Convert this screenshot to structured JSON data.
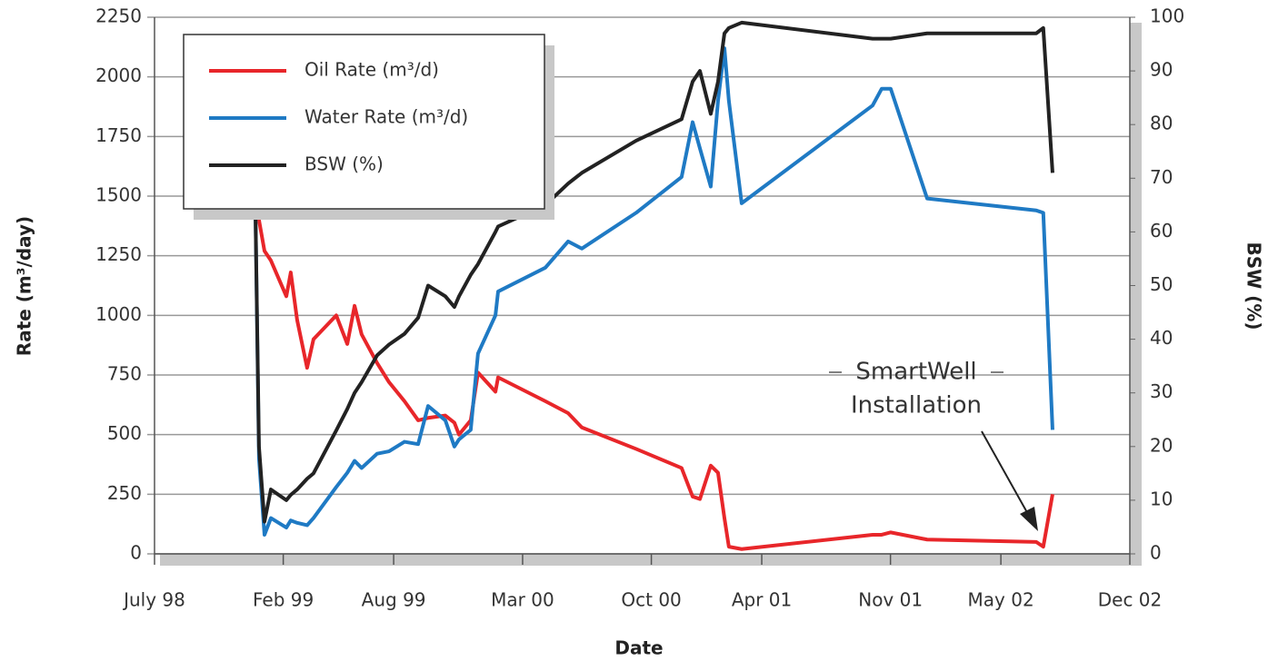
{
  "chart_data": {
    "type": "line",
    "x_label": "Date",
    "y_label": "Rate (m³/day)",
    "y2_label": "BSW (%)",
    "x": [
      1998.957,
      1998.973,
      1998.998,
      1999.027,
      1999.097,
      1999.117,
      1999.146,
      1999.191,
      1999.22,
      1999.323,
      1999.373,
      1999.406,
      1999.438,
      1999.508,
      1999.562,
      1999.632,
      1999.694,
      1999.739,
      1999.817,
      1999.858,
      1999.879,
      1999.932,
      1999.965,
      2000.044,
      2000.056,
      2000.27,
      2000.373,
      2000.435,
      2000.681,
      2000.887,
      2000.937,
      2000.97,
      2001.019,
      2001.052,
      2001.081,
      2001.101,
      2001.159,
      2001.752,
      2001.793,
      2001.834,
      2001.999,
      2002.493,
      2002.525,
      2002.567
    ],
    "series": [
      {
        "name": "Oil Rate (m³/d)",
        "color": "#e8262a",
        "values": [
          1450,
          1400,
          1270,
          1230,
          1080,
          1180,
          980,
          780,
          900,
          1000,
          880,
          1040,
          920,
          800,
          720,
          640,
          560,
          570,
          580,
          550,
          500,
          560,
          760,
          680,
          740,
          640,
          590,
          530,
          440,
          360,
          240,
          230,
          370,
          340,
          150,
          30,
          20,
          80,
          80,
          90,
          60,
          50,
          30,
          250
        ]
      },
      {
        "name": "Water Rate (m³/d)",
        "color": "#1f7ac4",
        "values": [
          1450,
          400,
          80,
          150,
          110,
          140,
          130,
          120,
          150,
          280,
          340,
          390,
          360,
          420,
          430,
          470,
          460,
          620,
          560,
          450,
          480,
          520,
          840,
          1000,
          1100,
          1200,
          1310,
          1280,
          1430,
          1580,
          1810,
          1700,
          1540,
          1900,
          2120,
          1900,
          1470,
          1880,
          1950,
          1950,
          1490,
          1440,
          1430,
          520
        ]
      },
      {
        "name": "BSW (%)",
        "color": "#222222",
        "axis": "y2",
        "values": [
          64,
          20,
          6,
          12,
          10,
          11,
          12,
          14,
          15,
          23,
          27,
          30,
          32,
          37,
          39,
          41,
          44,
          50,
          48,
          46,
          48,
          52,
          54,
          60,
          61,
          65,
          69,
          71,
          77,
          81,
          88,
          90,
          82,
          88,
          97,
          98,
          99,
          96,
          96,
          96,
          97,
          97,
          98,
          71
        ]
      }
    ],
    "xlim": [
      1998.5,
      2002.917
    ],
    "xticks": [
      {
        "value": 1998.5,
        "label": "July 98"
      },
      {
        "value": 1999.083,
        "label": "Feb 99"
      },
      {
        "value": 1999.583,
        "label": "Aug 99"
      },
      {
        "value": 2000.167,
        "label": "Mar 00"
      },
      {
        "value": 2000.75,
        "label": "Oct 00"
      },
      {
        "value": 2001.25,
        "label": "Apr 01"
      },
      {
        "value": 2001.833,
        "label": "Nov 01"
      },
      {
        "value": 2002.333,
        "label": "May 02"
      },
      {
        "value": 2002.917,
        "label": "Dec 02"
      }
    ],
    "ylim": [
      0,
      2250
    ],
    "yticks": [
      0,
      250,
      500,
      750,
      1000,
      1250,
      1500,
      1750,
      2000,
      2250
    ],
    "y2lim": [
      0,
      100
    ],
    "y2ticks": [
      0,
      10,
      20,
      30,
      40,
      50,
      60,
      70,
      80,
      90,
      100
    ],
    "grid": true,
    "legend": "upper left",
    "annotation": [
      "SmartWell",
      "Installation"
    ]
  }
}
